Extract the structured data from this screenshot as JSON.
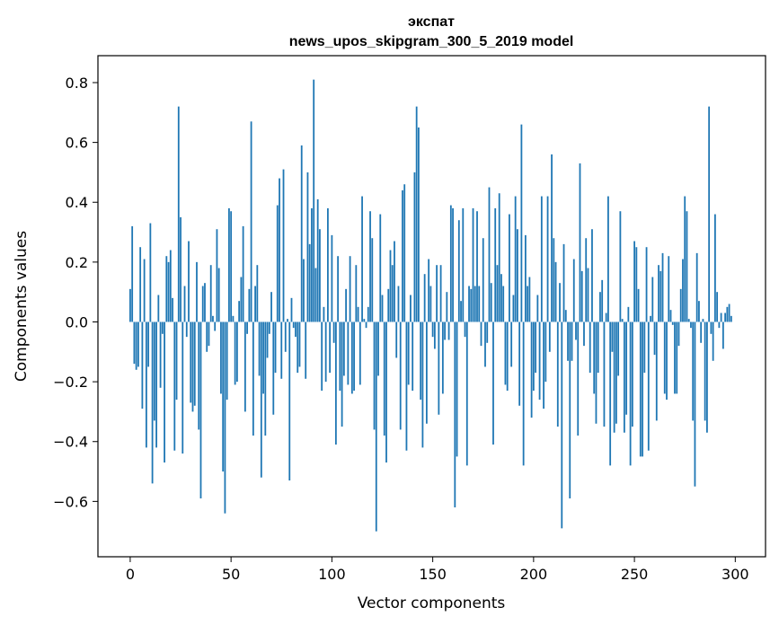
{
  "chart_data": {
    "type": "bar",
    "title_line1": "экспат",
    "title_line2": "news_upos_skipgram_300_5_2019 model",
    "xlabel": "Vector components",
    "ylabel": "Components values",
    "xlim": [
      -16,
      315
    ],
    "ylim": [
      -0.785,
      0.89
    ],
    "x_ticks": [
      0,
      50,
      100,
      150,
      200,
      250,
      300
    ],
    "x_tick_labels": [
      "0",
      "50",
      "100",
      "150",
      "200",
      "250",
      "300"
    ],
    "y_ticks": [
      -0.6,
      -0.4,
      -0.2,
      0.0,
      0.2,
      0.4,
      0.6,
      0.8
    ],
    "y_tick_labels": [
      "−0.6",
      "−0.4",
      "−0.2",
      "0.0",
      "0.2",
      "0.4",
      "0.6",
      "0.8"
    ],
    "bar_color": "#1f77b4",
    "values": [
      0.11,
      0.32,
      -0.14,
      -0.16,
      -0.15,
      0.25,
      -0.29,
      0.21,
      -0.42,
      -0.15,
      0.33,
      -0.54,
      -0.33,
      -0.42,
      0.09,
      -0.22,
      -0.04,
      -0.47,
      0.22,
      0.2,
      0.24,
      0.08,
      -0.43,
      -0.26,
      0.72,
      0.35,
      -0.44,
      0.12,
      -0.05,
      0.27,
      -0.27,
      -0.3,
      -0.28,
      0.2,
      -0.36,
      -0.59,
      0.12,
      0.13,
      -0.1,
      -0.08,
      0.19,
      0.02,
      -0.03,
      0.31,
      0.18,
      -0.24,
      -0.5,
      -0.64,
      -0.26,
      0.38,
      0.37,
      0.02,
      -0.21,
      -0.2,
      0.07,
      0.15,
      0.32,
      -0.3,
      -0.04,
      0.11,
      0.67,
      -0.38,
      0.12,
      0.19,
      -0.18,
      -0.52,
      -0.24,
      -0.38,
      -0.12,
      -0.04,
      0.1,
      -0.31,
      -0.17,
      0.39,
      0.48,
      -0.19,
      0.51,
      -0.1,
      0.01,
      -0.53,
      0.08,
      -0.02,
      -0.05,
      -0.17,
      -0.15,
      0.59,
      0.21,
      -0.19,
      0.5,
      0.26,
      0.38,
      0.81,
      0.18,
      0.41,
      0.31,
      -0.23,
      0.05,
      -0.2,
      0.38,
      -0.17,
      0.29,
      -0.07,
      -0.41,
      0.22,
      -0.23,
      -0.35,
      -0.18,
      0.11,
      -0.21,
      0.22,
      -0.24,
      -0.23,
      0.19,
      0.05,
      -0.21,
      0.42,
      0.01,
      -0.02,
      0.05,
      0.37,
      0.28,
      -0.36,
      -0.7,
      -0.18,
      0.36,
      0.09,
      -0.38,
      -0.47,
      0.11,
      0.24,
      0.19,
      0.27,
      -0.12,
      0.12,
      -0.36,
      0.44,
      0.46,
      -0.43,
      -0.21,
      0.09,
      -0.23,
      0.5,
      0.72,
      0.65,
      -0.26,
      -0.42,
      0.16,
      -0.34,
      0.21,
      0.12,
      -0.05,
      -0.09,
      0.19,
      -0.31,
      0.19,
      -0.24,
      -0.06,
      0.1,
      -0.06,
      0.39,
      0.38,
      -0.62,
      -0.45,
      0.34,
      0.07,
      0.38,
      -0.05,
      -0.48,
      0.12,
      0.11,
      0.38,
      0.12,
      0.37,
      0.12,
      -0.08,
      0.28,
      -0.15,
      -0.07,
      0.45,
      0.13,
      -0.41,
      0.38,
      0.19,
      0.43,
      0.16,
      0.12,
      -0.21,
      -0.23,
      0.36,
      -0.15,
      0.09,
      0.42,
      0.31,
      -0.28,
      0.66,
      -0.48,
      0.29,
      0.12,
      0.15,
      -0.32,
      -0.23,
      -0.17,
      0.09,
      -0.26,
      0.42,
      -0.29,
      -0.2,
      0.42,
      -0.1,
      0.56,
      0.28,
      0.2,
      -0.35,
      0.13,
      -0.69,
      0.26,
      0.04,
      -0.13,
      -0.59,
      -0.13,
      0.21,
      -0.06,
      -0.38,
      0.53,
      0.17,
      -0.08,
      0.28,
      0.18,
      -0.17,
      0.31,
      -0.24,
      -0.34,
      -0.17,
      0.1,
      0.14,
      -0.35,
      0.03,
      0.42,
      -0.48,
      -0.1,
      -0.37,
      -0.34,
      -0.18,
      0.37,
      0.01,
      -0.37,
      -0.31,
      0.05,
      -0.48,
      -0.35,
      0.27,
      0.25,
      0.11,
      -0.45,
      -0.45,
      -0.17,
      0.25,
      -0.43,
      0.02,
      0.15,
      -0.11,
      -0.33,
      0.19,
      0.17,
      0.23,
      -0.24,
      -0.26,
      0.22,
      0.04,
      -0.01,
      -0.24,
      -0.24,
      -0.08,
      0.11,
      0.21,
      0.42,
      0.37,
      0.01,
      -0.02,
      -0.33,
      -0.55,
      0.23,
      0.07,
      -0.07,
      0.01,
      -0.33,
      -0.37,
      0.72,
      -0.04,
      -0.13,
      0.36,
      0.1,
      -0.02,
      0.03,
      -0.09,
      0.03,
      0.05,
      0.06,
      0.02
    ]
  }
}
